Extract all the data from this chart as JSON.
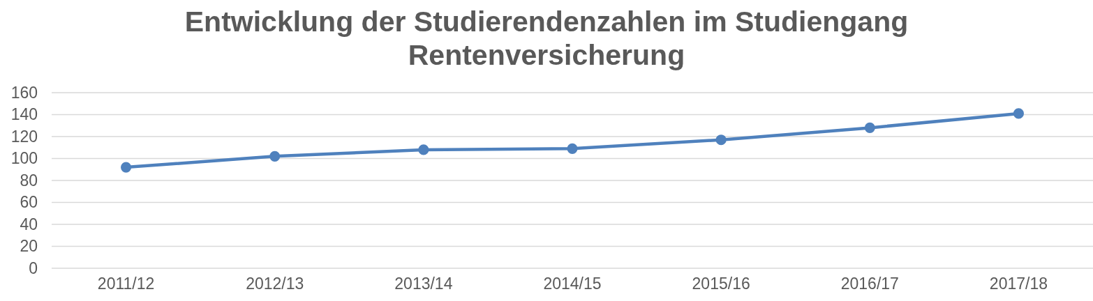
{
  "chart_data": {
    "type": "line",
    "title": "Entwicklung der Studierendenzahlen im Studiengang Rentenversicherung",
    "categories": [
      "2011/12",
      "2012/13",
      "2013/14",
      "2014/15",
      "2015/16",
      "2016/17",
      "2017/18"
    ],
    "values": [
      92,
      102,
      108,
      109,
      117,
      128,
      141
    ],
    "color": "#4f81bd",
    "ylim": [
      0,
      160
    ],
    "yticks": [
      0,
      20,
      40,
      60,
      80,
      100,
      120,
      140,
      160
    ],
    "grid": "y",
    "marker": "circle"
  }
}
